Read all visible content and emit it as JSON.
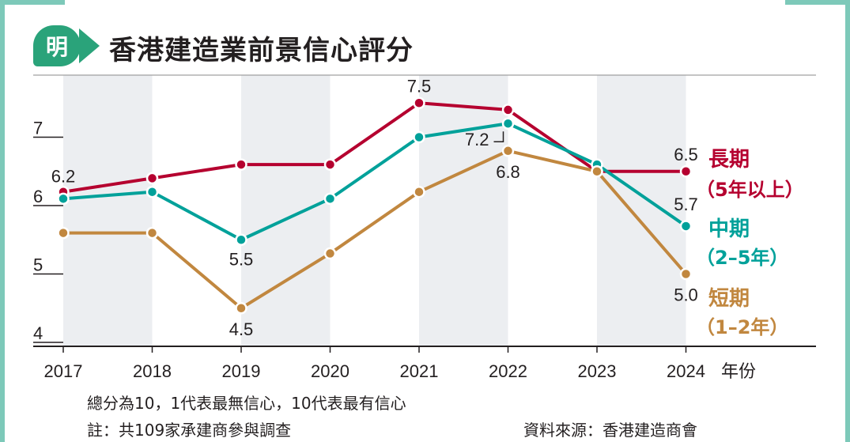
{
  "header": {
    "logo_text": "明",
    "title": "香港建造業前景信心評分"
  },
  "chart_data": {
    "type": "line",
    "title": "香港建造業前景信心評分",
    "categories": [
      "2017",
      "2018",
      "2019",
      "2020",
      "2021",
      "2022",
      "2023",
      "2024"
    ],
    "x_unit": "年份",
    "ylim": [
      4,
      8
    ],
    "yticks": [
      "4",
      "5",
      "6",
      "7"
    ],
    "grid": false,
    "series": [
      {
        "name": "長期（5年以上）",
        "name_line1": "長期",
        "name_line2": "（5年以上）",
        "color": "#b5002f",
        "values": [
          6.2,
          6.4,
          6.6,
          6.6,
          7.5,
          7.4,
          6.5,
          6.5
        ],
        "labels": [
          {
            "index": 0,
            "text": "6.2"
          },
          {
            "index": 4,
            "text": "7.5"
          },
          {
            "index": 7,
            "text": "6.5"
          }
        ]
      },
      {
        "name": "中期（2–5年）",
        "name_line1": "中期",
        "name_line2": "（2–5年）",
        "color": "#00a19a",
        "values": [
          6.1,
          6.2,
          5.5,
          6.1,
          7.0,
          7.2,
          6.6,
          5.7
        ],
        "labels": [
          {
            "index": 2,
            "text": "5.5"
          },
          {
            "index": 5,
            "text": "7.2"
          },
          {
            "index": 7,
            "text": "5.7"
          }
        ]
      },
      {
        "name": "短期（1–2年）",
        "name_line1": "短期",
        "name_line2": "（1–2年）",
        "color": "#c1873f",
        "values": [
          5.6,
          5.6,
          4.5,
          5.3,
          6.2,
          6.8,
          6.5,
          5.0
        ],
        "labels": [
          {
            "index": 2,
            "text": "4.5"
          },
          {
            "index": 5,
            "text": "6.8"
          },
          {
            "index": 7,
            "text": "5.0"
          }
        ]
      }
    ]
  },
  "notes": {
    "line1": "總分為10，1代表最無信心，10代表最有信心",
    "line2": "註：共109家承建商參與調查",
    "source": "資料來源：香港建造商會"
  }
}
